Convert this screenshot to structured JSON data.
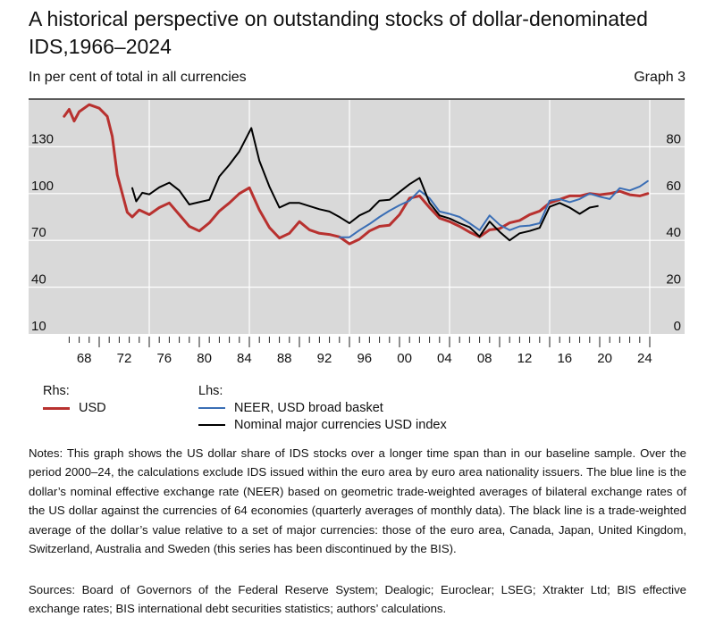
{
  "header": {
    "title": "A historical perspective on outstanding stocks of dollar-denominated IDS,1966–2024",
    "subtitle": "In per cent of total in all currencies",
    "graph_number": "Graph 3"
  },
  "legend": {
    "rhs_heading": "Rhs:",
    "lhs_heading": "Lhs:",
    "items": [
      {
        "label": "USD",
        "color": "#b8312f",
        "axis": "rhs"
      },
      {
        "label": "NEER, USD broad basket",
        "color": "#3a6eb5",
        "axis": "lhs"
      },
      {
        "label": "Nominal major currencies USD index",
        "color": "#000000",
        "axis": "lhs"
      }
    ]
  },
  "notes": "Notes: This graph shows the US dollar share of IDS stocks over a longer time span than in our baseline sample. Over the period 2000–24, the calculations exclude IDS issued within the euro area by euro area nationality issuers. The blue line is the dollar’s nominal effective exchange rate (NEER) based on geometric trade-weighted averages of bilateral exchange rates of the US dollar against the currencies of 64 economies (quarterly averages of monthly data). The black line is a trade-weighted average of the dollar’s value relative to a set of major currencies: those of the euro area, Canada, Japan, United Kingdom, Switzerland, Australia and Sweden (this series has been discontinued by the BIS).",
  "sources": "Sources: Board of Governors of the Federal Reserve System; Dealogic; Euroclear; LSEG; Xtrakter Ltd; BIS effective exchange rates; BIS international debt securities statistics; authors’ calculations.",
  "chart_data": {
    "type": "line",
    "title": "A historical perspective on outstanding stocks of dollar-denominated IDS,1966–2024",
    "xlabel": "",
    "ylabel_left": "",
    "ylabel_right": "",
    "xlim": [
      1967,
      2025
    ],
    "x_tick_labels": [
      "68",
      "72",
      "76",
      "80",
      "84",
      "88",
      "92",
      "96",
      "00",
      "04",
      "08",
      "12",
      "16",
      "20",
      "24"
    ],
    "x_tick_years": [
      1968,
      1972,
      1976,
      1980,
      1984,
      1988,
      1992,
      1996,
      2000,
      2004,
      2008,
      2012,
      2016,
      2020,
      2024
    ],
    "major_tick_years": [
      1970,
      1975,
      1980,
      1985,
      1990,
      1995,
      2000,
      2005,
      2010,
      2015,
      2020,
      2025
    ],
    "vertical_grid_years": [
      1975,
      1985,
      1995,
      2005,
      2015,
      2025
    ],
    "ylim_left": [
      10,
      160
    ],
    "yticks_left": [
      10,
      40,
      70,
      100,
      130
    ],
    "ylim_right": [
      0,
      100
    ],
    "yticks_right": [
      0,
      20,
      40,
      60,
      80
    ],
    "grid": true,
    "legend_placement": "bottom",
    "series": [
      {
        "name": "USD",
        "axis": "rhs",
        "color": "#b8312f",
        "x": [
          1966.5,
          1967,
          1967.5,
          1968,
          1969,
          1970,
          1970.8,
          1971.3,
          1971.8,
          1972.3,
          1972.8,
          1973.3,
          1974,
          1975,
          1976,
          1977,
          1978,
          1979,
          1980,
          1981,
          1982,
          1983,
          1984,
          1985,
          1986,
          1987,
          1988,
          1989,
          1990,
          1991,
          1992,
          1993,
          1994,
          1995,
          1996,
          1997,
          1998,
          1999,
          2000,
          2001,
          2002,
          2003,
          2004,
          2005,
          2006,
          2007,
          2008,
          2009,
          2010,
          2011,
          2012,
          2013,
          2014,
          2015,
          2016,
          2017,
          2018,
          2019,
          2020,
          2021,
          2022,
          2023,
          2024,
          2024.8
        ],
        "y": [
          93,
          96,
          91,
          95,
          98,
          96.5,
          93,
          84.5,
          68,
          60,
          52,
          50,
          53,
          51,
          54,
          56,
          51,
          46,
          44,
          47.5,
          52.5,
          56,
          60,
          62.5,
          53,
          45.5,
          41,
          43,
          48,
          44.5,
          43,
          42.5,
          41.5,
          38.5,
          40.5,
          44,
          46,
          46.5,
          51,
          58,
          59,
          54,
          49.5,
          48,
          46,
          43.5,
          41.5,
          44.5,
          45,
          47.5,
          48.5,
          51,
          52.5,
          56,
          57.5,
          59,
          59,
          60,
          59.5,
          60,
          61,
          59.5,
          59,
          60
        ]
      },
      {
        "name": "NEER, USD broad basket",
        "axis": "lhs",
        "color": "#3a6eb5",
        "x": [
          1994,
          1995,
          1996,
          1997,
          1998,
          1999,
          2000,
          2001,
          2002,
          2003,
          2004,
          2005,
          2006,
          2007,
          2008,
          2009,
          2010,
          2011,
          2012,
          2013,
          2014,
          2015,
          2016,
          2017,
          2018,
          2019,
          2020,
          2021,
          2022,
          2023,
          2024,
          2024.8
        ],
        "y": [
          72,
          72,
          76.5,
          80.5,
          85,
          89,
          92.5,
          95.5,
          102,
          97,
          88.5,
          87,
          85,
          81,
          76.5,
          86,
          80,
          76.5,
          79,
          79.5,
          81,
          95.5,
          96.5,
          94.5,
          96.5,
          100,
          98,
          96.5,
          103.5,
          102,
          104.5,
          108
        ]
      },
      {
        "name": "Nominal major currencies USD index",
        "axis": "lhs",
        "color": "#000000",
        "x": [
          1973.3,
          1973.7,
          1974.3,
          1975,
          1976,
          1977,
          1978,
          1979,
          1980,
          1981,
          1982,
          1983,
          1984,
          1985.2,
          1986,
          1987,
          1988,
          1989,
          1990,
          1991,
          1992,
          1993,
          1994,
          1995,
          1996,
          1997,
          1998,
          1999,
          2000,
          2001,
          2002,
          2003,
          2004,
          2005,
          2006,
          2007,
          2008,
          2009,
          2010,
          2011,
          2012,
          2013,
          2014,
          2015,
          2016,
          2017,
          2018,
          2019,
          2019.8
        ],
        "y": [
          103.5,
          95,
          100.5,
          99.5,
          104,
          107,
          102,
          93,
          94.5,
          96,
          111,
          118.5,
          127,
          142,
          121,
          104.5,
          91,
          94,
          94,
          92,
          90,
          88.5,
          85,
          81,
          86,
          89,
          95.5,
          96,
          101,
          106,
          110,
          94,
          86,
          84,
          81,
          78.5,
          72.5,
          82,
          75.5,
          70,
          74.5,
          76,
          78,
          91.5,
          94,
          91,
          87,
          91,
          92
        ]
      }
    ]
  }
}
